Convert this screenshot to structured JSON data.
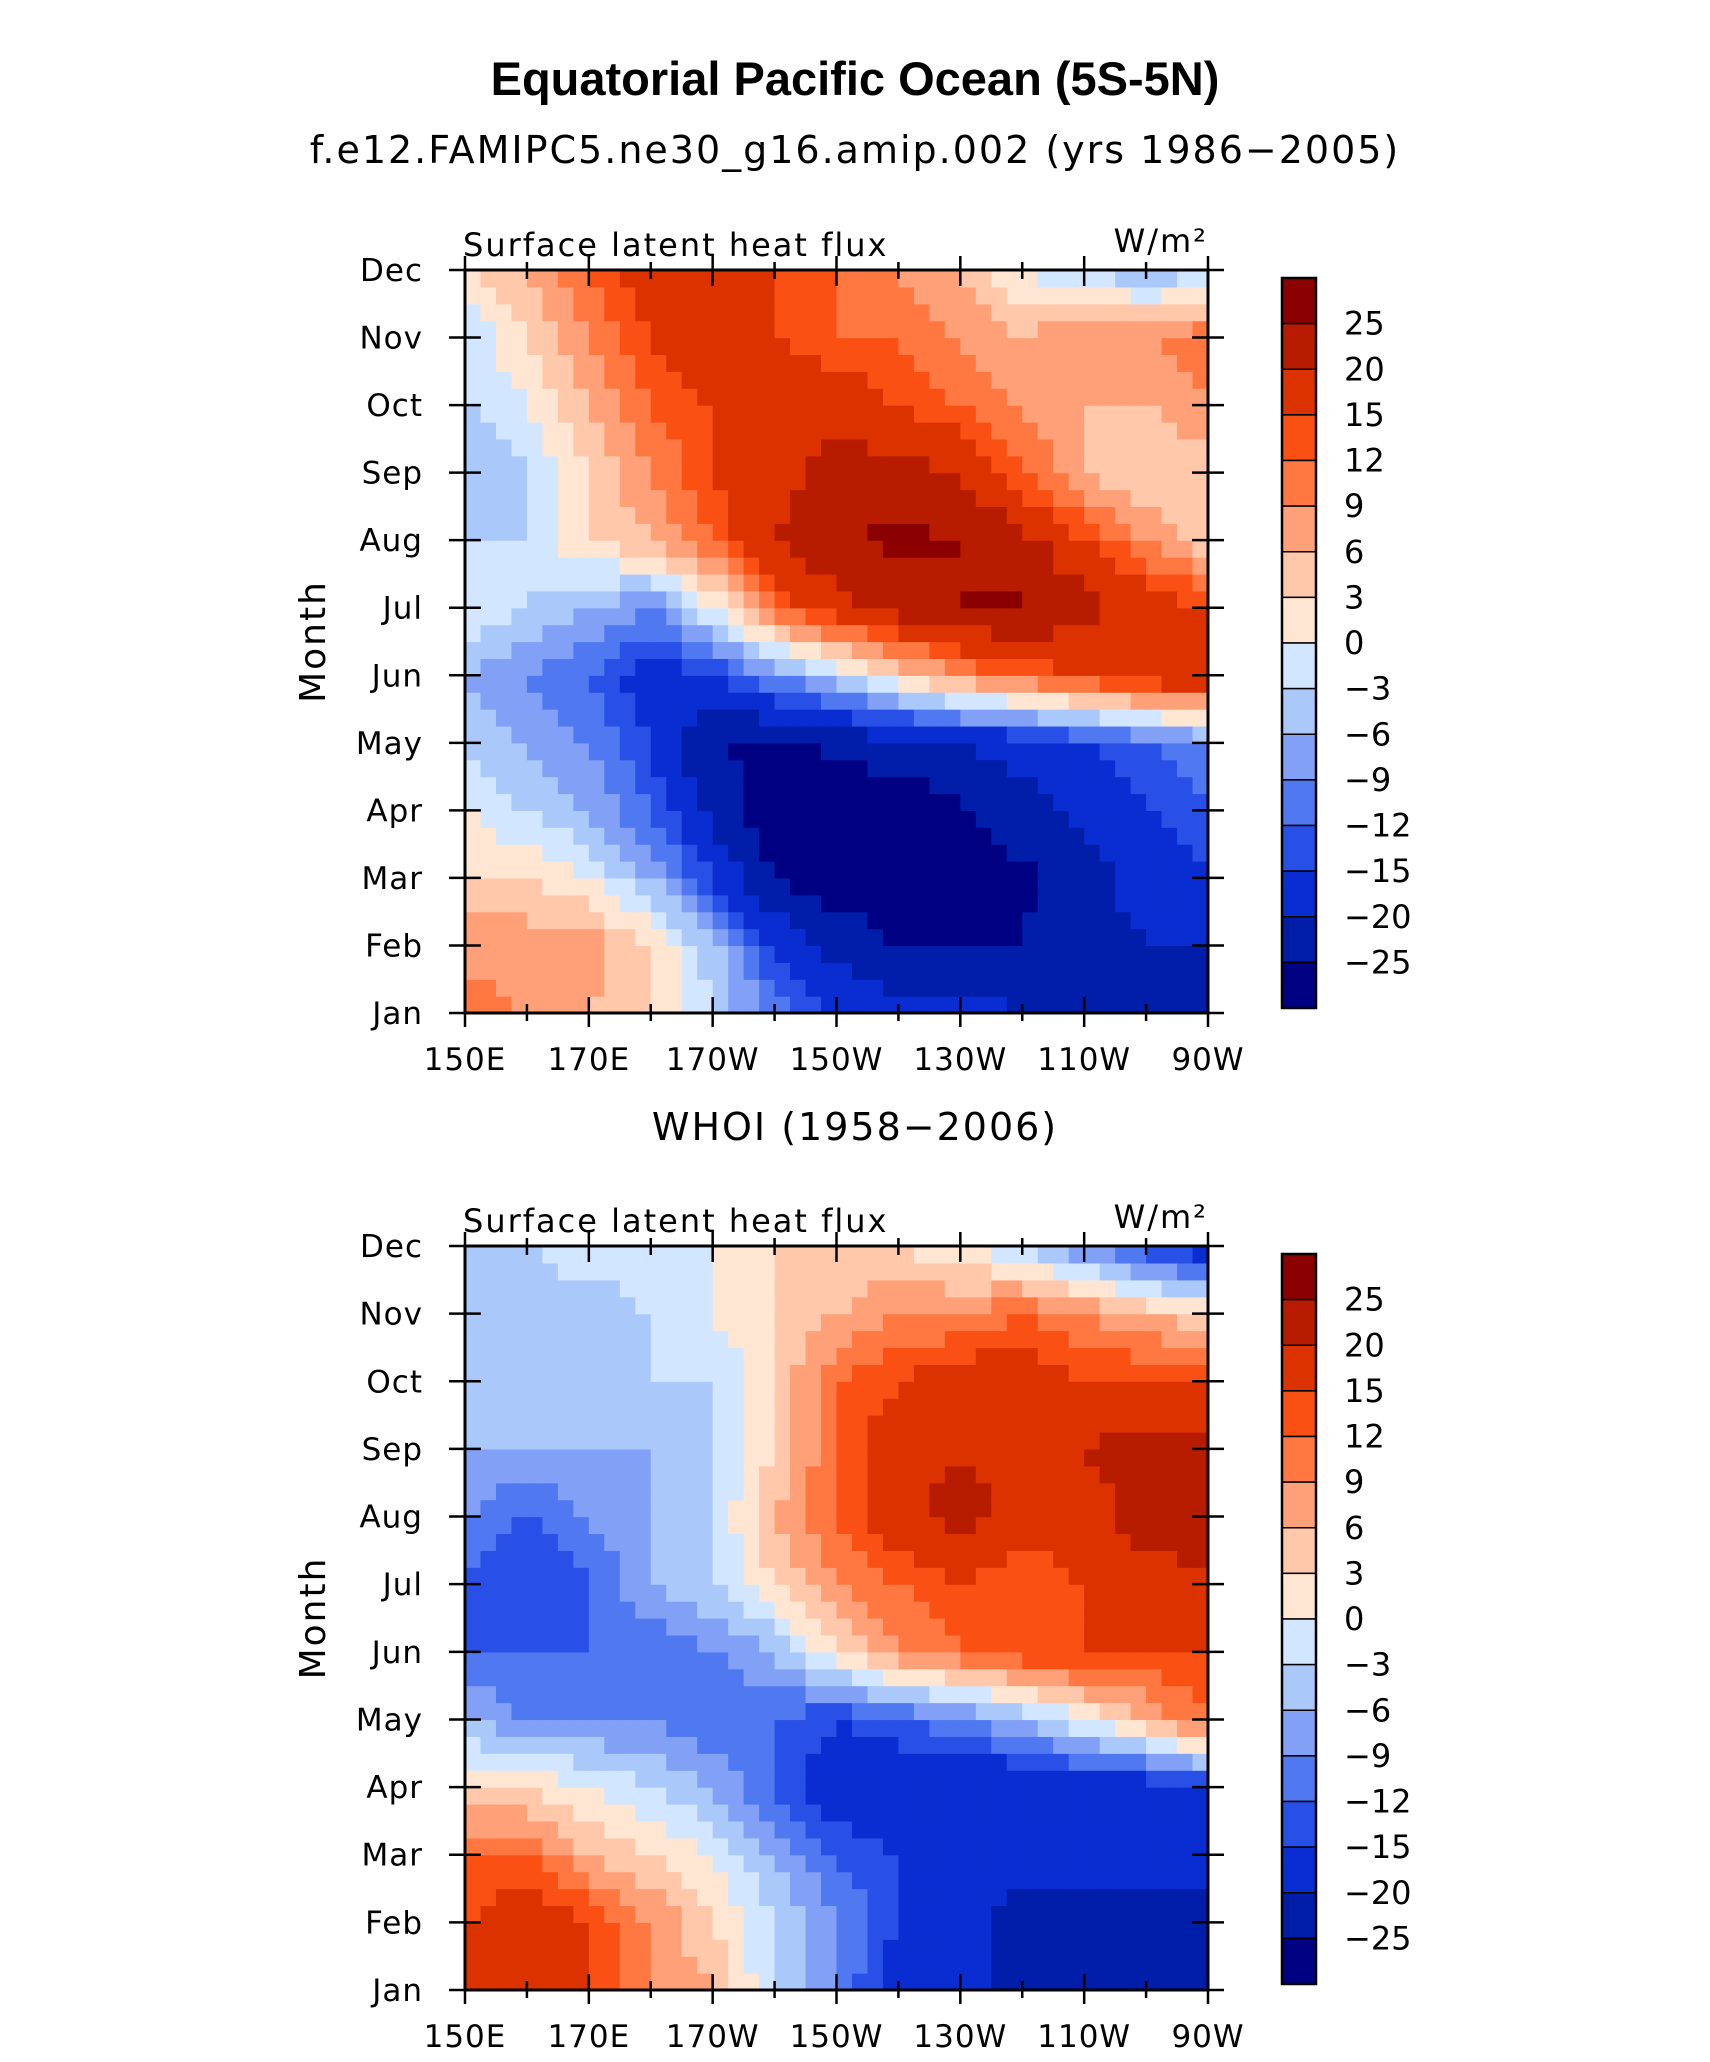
{
  "title": "Equatorial Pacific Ocean (5S-5N)",
  "colorbar": {
    "levels": [
      "25",
      "20",
      "15",
      "12",
      "9",
      "6",
      "3",
      "0",
      "−3",
      "−6",
      "−9",
      "−12",
      "−15",
      "−20",
      "−25"
    ],
    "colors": [
      "#8b0000",
      "#b81c00",
      "#dc3200",
      "#fa5014",
      "#ff7841",
      "#ffa078",
      "#ffc8aa",
      "#ffe6d2",
      "#d2e6ff",
      "#aac8fa",
      "#82a0f5",
      "#5078f0",
      "#2850e6",
      "#0a2dd2",
      "#001eaa",
      "#000082"
    ]
  },
  "chart_data": [
    {
      "type": "heatmap",
      "subtitle": "f.e12.FAMIPC5.ne30_g16.amip.002 (yrs 1986−2005)",
      "left_string": "Surface latent heat flux",
      "right_string": "W/m²",
      "ylabel": "Month",
      "x_ticks": [
        "150E",
        "170E",
        "170W",
        "150W",
        "130W",
        "110W",
        "90W"
      ],
      "x_range": [
        150,
        270
      ],
      "y_ticks": [
        "Jan",
        "Feb",
        "Mar",
        "Apr",
        "May",
        "Jun",
        "Jul",
        "Aug",
        "Sep",
        "Oct",
        "Nov",
        "Dec"
      ],
      "units": "W/m²",
      "x": [
        150,
        160,
        170,
        180,
        190,
        200,
        210,
        220,
        230,
        240,
        250,
        260,
        270
      ],
      "y": [
        "Jan",
        "Feb",
        "Mar",
        "Apr",
        "May",
        "Jun",
        "Jul",
        "Aug",
        "Sep",
        "Oct",
        "Nov",
        "Dec"
      ],
      "z": [
        [
          10,
          9,
          6,
          3,
          -3,
          -10,
          -15,
          -18,
          -18,
          -20,
          -22,
          -22,
          -22
        ],
        [
          8,
          8,
          8,
          3,
          -5,
          -15,
          -22,
          -25,
          -25,
          -25,
          -22,
          -20,
          -20
        ],
        [
          3,
          3,
          0,
          -6,
          -15,
          -25,
          -28,
          -28,
          -28,
          -26,
          -22,
          -18,
          -15
        ],
        [
          0,
          -3,
          -6,
          -12,
          -22,
          -28,
          -28,
          -28,
          -26,
          -22,
          -18,
          -15,
          -12
        ],
        [
          -3,
          -6,
          -9,
          -15,
          -25,
          -26,
          -24,
          -22,
          -20,
          -18,
          -15,
          -12,
          -9
        ],
        [
          -6,
          -9,
          -12,
          -18,
          -15,
          -9,
          -3,
          3,
          9,
          12,
          15,
          18,
          20
        ],
        [
          0,
          -3,
          -6,
          -9,
          0,
          12,
          18,
          22,
          25,
          26,
          22,
          18,
          15
        ],
        [
          -3,
          -3,
          3,
          6,
          12,
          20,
          25,
          26,
          25,
          22,
          15,
          9,
          3
        ],
        [
          -6,
          -3,
          3,
          9,
          15,
          18,
          22,
          22,
          20,
          12,
          6,
          3,
          3
        ],
        [
          -3,
          0,
          6,
          12,
          15,
          20,
          18,
          15,
          12,
          9,
          6,
          6,
          9
        ],
        [
          -3,
          3,
          9,
          15,
          20,
          15,
          12,
          12,
          9,
          6,
          9,
          9,
          12
        ],
        [
          3,
          6,
          12,
          18,
          20,
          15,
          12,
          9,
          6,
          0,
          -3,
          -6,
          -3
        ]
      ],
      "levels": [
        -25,
        -20,
        -15,
        -12,
        -9,
        -6,
        -3,
        0,
        3,
        6,
        9,
        12,
        15,
        20,
        25
      ],
      "colorbar_labels": [
        "25",
        "20",
        "15",
        "12",
        "9",
        "6",
        "3",
        "0",
        "−3",
        "−6",
        "−9",
        "−12",
        "−15",
        "−20",
        "−25"
      ]
    },
    {
      "type": "heatmap",
      "subtitle": "WHOI (1958−2006)",
      "left_string": "Surface latent heat flux",
      "right_string": "W/m²",
      "ylabel": "Month",
      "x_ticks": [
        "150E",
        "170E",
        "170W",
        "150W",
        "130W",
        "110W",
        "90W"
      ],
      "x_range": [
        150,
        270
      ],
      "y_ticks": [
        "Jan",
        "Feb",
        "Mar",
        "Apr",
        "May",
        "Jun",
        "Jul",
        "Aug",
        "Sep",
        "Oct",
        "Nov",
        "Dec"
      ],
      "units": "W/m²",
      "x": [
        150,
        160,
        170,
        180,
        190,
        200,
        210,
        220,
        230,
        240,
        250,
        260,
        270
      ],
      "y": [
        "Jan",
        "Feb",
        "Mar",
        "Apr",
        "May",
        "Jun",
        "Jul",
        "Aug",
        "Sep",
        "Oct",
        "Nov",
        "Dec"
      ],
      "z": [
        [
          15,
          15,
          15,
          9,
          6,
          -3,
          -9,
          -18,
          -20,
          -20,
          -22,
          -22,
          -25
        ],
        [
          15,
          18,
          15,
          9,
          3,
          -3,
          -9,
          -15,
          -18,
          -22,
          -22,
          -22,
          -22
        ],
        [
          12,
          12,
          6,
          3,
          0,
          -6,
          -12,
          -15,
          -18,
          -18,
          -18,
          -18,
          -18
        ],
        [
          3,
          3,
          0,
          -3,
          -6,
          -12,
          -18,
          -20,
          -20,
          -20,
          -18,
          -18,
          -15
        ],
        [
          -6,
          -9,
          -9,
          -9,
          -12,
          -12,
          -15,
          -12,
          -9,
          -6,
          0,
          6,
          12
        ],
        [
          -12,
          -12,
          -12,
          -12,
          -9,
          -6,
          3,
          9,
          12,
          15,
          15,
          15,
          15
        ],
        [
          -12,
          -15,
          -12,
          -6,
          -3,
          3,
          9,
          12,
          15,
          12,
          15,
          18,
          18
        ],
        [
          -9,
          -12,
          -9,
          -6,
          -3,
          6,
          12,
          18,
          22,
          18,
          18,
          22,
          25
        ],
        [
          -6,
          -6,
          -6,
          -6,
          -3,
          3,
          12,
          18,
          20,
          18,
          20,
          22,
          22
        ],
        [
          -3,
          -3,
          -6,
          -3,
          -3,
          3,
          12,
          15,
          18,
          18,
          15,
          15,
          15
        ],
        [
          -3,
          -6,
          -6,
          -3,
          0,
          3,
          6,
          9,
          9,
          12,
          9,
          6,
          3
        ],
        [
          -3,
          -3,
          0,
          0,
          0,
          3,
          3,
          3,
          0,
          -3,
          -9,
          -15,
          -18
        ]
      ],
      "levels": [
        -25,
        -20,
        -15,
        -12,
        -9,
        -6,
        -3,
        0,
        3,
        6,
        9,
        12,
        15,
        20,
        25
      ],
      "colorbar_labels": [
        "25",
        "20",
        "15",
        "12",
        "9",
        "6",
        "3",
        "0",
        "−3",
        "−6",
        "−9",
        "−12",
        "−15",
        "−20",
        "−25"
      ]
    }
  ]
}
